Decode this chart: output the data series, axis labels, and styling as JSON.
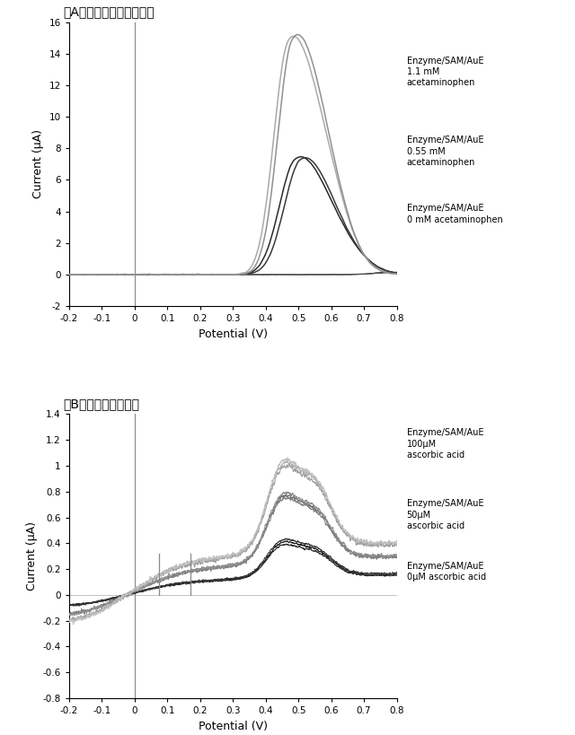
{
  "panel_A_title": "（A）アセトアミノフェン",
  "panel_B_title": "（B）アスコルビン酸",
  "xlabel": "Potential (V)",
  "panel_A_ylabel": "Current (μA)",
  "panel_B_ylabel": "Current (μA)",
  "panel_A_xlim": [
    -0.2,
    0.8
  ],
  "panel_A_ylim": [
    -2,
    16
  ],
  "panel_B_xlim": [
    -0.2,
    0.8
  ],
  "panel_B_ylim": [
    -0.8,
    1.4
  ],
  "panel_A_yticks": [
    -2,
    0,
    2,
    4,
    6,
    8,
    10,
    12,
    14,
    16
  ],
  "panel_B_yticks": [
    -0.8,
    -0.6,
    -0.4,
    -0.2,
    0,
    0.2,
    0.4,
    0.6,
    0.8,
    1.0,
    1.2,
    1.4
  ],
  "panel_A_xticks": [
    -0.2,
    -0.1,
    0,
    0.1,
    0.2,
    0.3,
    0.4,
    0.5,
    0.6,
    0.7,
    0.8
  ],
  "panel_B_xticks": [
    -0.2,
    -0.1,
    0,
    0.1,
    0.2,
    0.3,
    0.4,
    0.5,
    0.6,
    0.7,
    0.8
  ],
  "legend_A_lines": [
    [
      "Enzyme/SAM/AuE",
      "1.1 mM",
      "acetaminophen"
    ],
    [
      "Enzyme/SAM/AuE",
      "0.55 mM",
      "acetaminophen"
    ],
    [
      "Enzyme/SAM/AuE",
      "0 mM acetaminophen"
    ]
  ],
  "legend_B_lines": [
    [
      "Enzyme/SAM/AuE",
      "100μM",
      "ascorbic acid"
    ],
    [
      "Enzyme/SAM/AuE",
      "50μM",
      "ascorbic acid"
    ],
    [
      "Enzyme/SAM/AuE",
      "0μM ascorbic acid"
    ]
  ],
  "background": "#ffffff"
}
